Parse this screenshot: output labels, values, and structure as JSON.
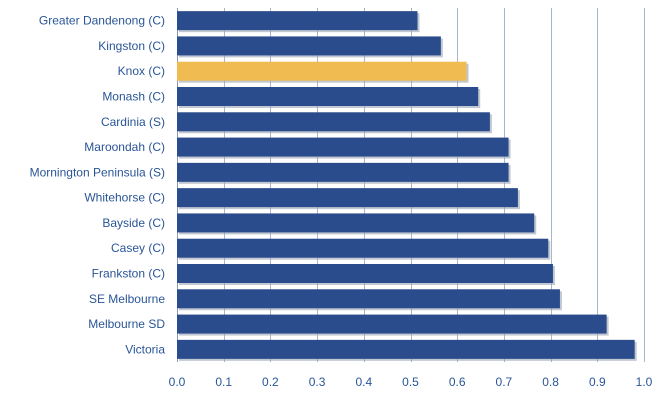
{
  "chart_data": {
    "type": "bar",
    "orientation": "horizontal",
    "title": "",
    "xlabel": "",
    "ylabel": "",
    "categories": [
      "Greater Dandenong (C)",
      "Kingston (C)",
      "Knox (C)",
      "Monash (C)",
      "Cardinia (S)",
      "Maroondah (C)",
      "Mornington Peninsula (S)",
      "Whitehorse (C)",
      "Bayside (C)",
      "Casey (C)",
      "Frankston (C)",
      "SE Melbourne",
      "Melbourne SD",
      "Victoria"
    ],
    "values": [
      0.515,
      0.565,
      0.62,
      0.645,
      0.67,
      0.71,
      0.71,
      0.73,
      0.765,
      0.795,
      0.805,
      0.82,
      0.92,
      0.98
    ],
    "highlight_category": "Knox (C)",
    "xlim": [
      0,
      1
    ],
    "xticks": [
      "0.0",
      "0.1",
      "0.2",
      "0.3",
      "0.4",
      "0.5",
      "0.6",
      "0.7",
      "0.8",
      "0.9",
      "1.0"
    ],
    "grid": "vertical",
    "legend": "none",
    "colors": {
      "bar": "#2b4c8c",
      "highlight": "#f0bb50",
      "grid": "#a8b6cc",
      "axis": "#8a9ab4",
      "label": "#2a5597",
      "shadow": "#9aa4b4"
    }
  }
}
